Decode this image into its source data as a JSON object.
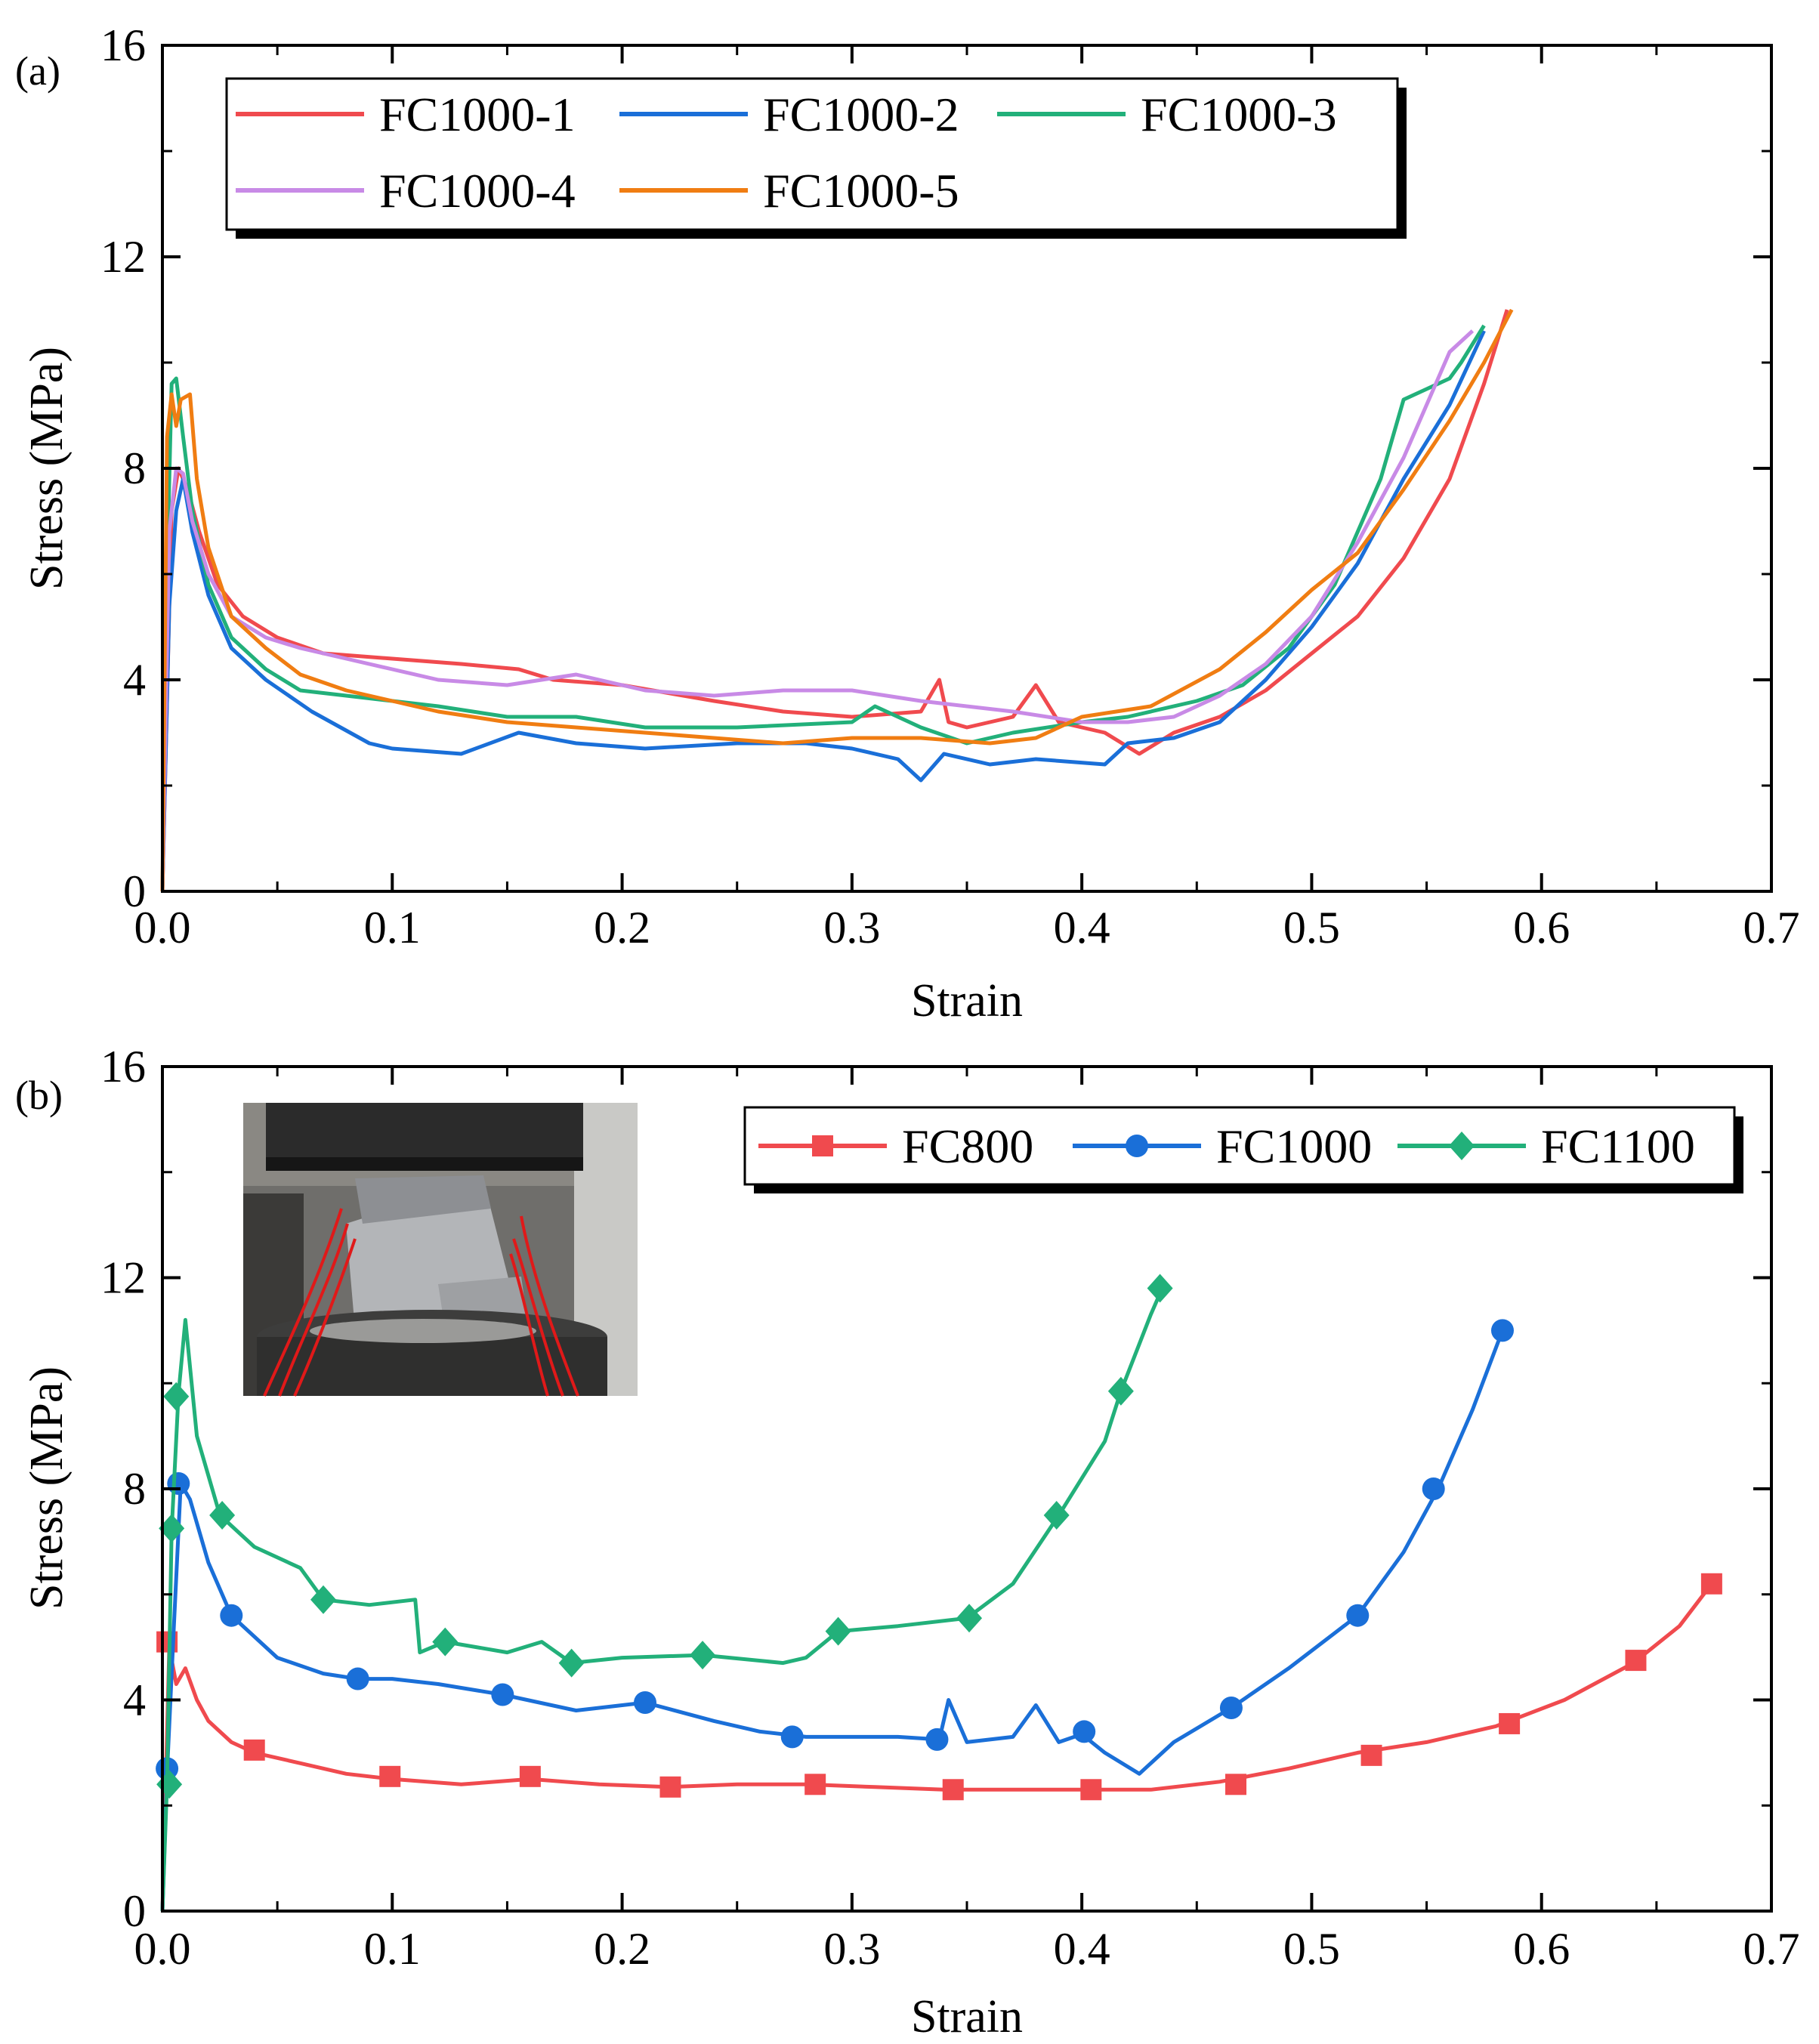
{
  "chart_data": [
    {
      "panel_label": "(a)",
      "type": "line",
      "xlabel": "Strain",
      "ylabel": "Stress (MPa)",
      "xlim": [
        0.0,
        0.7
      ],
      "ylim": [
        0,
        16
      ],
      "xticks": [
        "0.0",
        "0.1",
        "0.2",
        "0.3",
        "0.4",
        "0.5",
        "0.6",
        "0.7"
      ],
      "yticks": [
        "0",
        "4",
        "8",
        "12",
        "16"
      ],
      "legend_position": "top-left",
      "series": [
        {
          "name": "FC1000-1",
          "color": "#f04a4e",
          "x": [
            0,
            0.004,
            0.007,
            0.011,
            0.016,
            0.024,
            0.035,
            0.05,
            0.07,
            0.1,
            0.13,
            0.155,
            0.17,
            0.2,
            0.24,
            0.27,
            0.3,
            0.33,
            0.338,
            0.342,
            0.35,
            0.37,
            0.38,
            0.39,
            0.41,
            0.425,
            0.44,
            0.46,
            0.48,
            0.5,
            0.52,
            0.54,
            0.56,
            0.575,
            0.585
          ],
          "y": [
            0,
            7.2,
            8.0,
            7.6,
            6.8,
            5.8,
            5.2,
            4.8,
            4.5,
            4.4,
            4.3,
            4.2,
            4.0,
            3.9,
            3.6,
            3.4,
            3.3,
            3.4,
            4.0,
            3.2,
            3.1,
            3.3,
            3.9,
            3.2,
            3.0,
            2.6,
            3.0,
            3.3,
            3.8,
            4.5,
            5.2,
            6.3,
            7.8,
            9.6,
            11.0
          ]
        },
        {
          "name": "FC1000-2",
          "color": "#1a6fd8",
          "x": [
            0,
            0.003,
            0.006,
            0.009,
            0.013,
            0.02,
            0.03,
            0.045,
            0.065,
            0.09,
            0.1,
            0.13,
            0.155,
            0.18,
            0.21,
            0.25,
            0.28,
            0.3,
            0.32,
            0.33,
            0.34,
            0.36,
            0.38,
            0.41,
            0.42,
            0.44,
            0.46,
            0.48,
            0.5,
            0.52,
            0.54,
            0.56,
            0.575
          ],
          "y": [
            0,
            5.4,
            7.2,
            7.8,
            6.8,
            5.6,
            4.6,
            4.0,
            3.4,
            2.8,
            2.7,
            2.6,
            3.0,
            2.8,
            2.7,
            2.8,
            2.8,
            2.7,
            2.5,
            2.1,
            2.6,
            2.4,
            2.5,
            2.4,
            2.8,
            2.9,
            3.2,
            4.0,
            5.0,
            6.2,
            7.8,
            9.2,
            10.6
          ]
        },
        {
          "name": "FC1000-3",
          "color": "#22b07a",
          "x": [
            0,
            0.002,
            0.004,
            0.006,
            0.009,
            0.013,
            0.02,
            0.03,
            0.045,
            0.06,
            0.08,
            0.1,
            0.12,
            0.15,
            0.18,
            0.21,
            0.25,
            0.3,
            0.31,
            0.33,
            0.35,
            0.37,
            0.4,
            0.42,
            0.45,
            0.47,
            0.49,
            0.51,
            0.53,
            0.54,
            0.55,
            0.56,
            0.565,
            0.575
          ],
          "y": [
            0,
            6.0,
            9.6,
            9.7,
            8.6,
            7.2,
            5.8,
            4.8,
            4.2,
            3.8,
            3.7,
            3.6,
            3.5,
            3.3,
            3.3,
            3.1,
            3.1,
            3.2,
            3.5,
            3.1,
            2.8,
            3.0,
            3.2,
            3.3,
            3.6,
            3.9,
            4.6,
            5.8,
            7.8,
            9.3,
            9.5,
            9.7,
            10.0,
            10.7
          ]
        },
        {
          "name": "FC1000-4",
          "color": "#c88ae6",
          "x": [
            0,
            0.003,
            0.006,
            0.009,
            0.013,
            0.02,
            0.03,
            0.045,
            0.06,
            0.08,
            0.1,
            0.12,
            0.15,
            0.18,
            0.21,
            0.24,
            0.27,
            0.3,
            0.33,
            0.37,
            0.4,
            0.42,
            0.44,
            0.46,
            0.48,
            0.5,
            0.52,
            0.54,
            0.56,
            0.57
          ],
          "y": [
            0,
            6.8,
            8.0,
            7.9,
            7.0,
            6.0,
            5.2,
            4.8,
            4.6,
            4.4,
            4.2,
            4.0,
            3.9,
            4.1,
            3.8,
            3.7,
            3.8,
            3.8,
            3.6,
            3.4,
            3.2,
            3.2,
            3.3,
            3.7,
            4.3,
            5.2,
            6.6,
            8.2,
            10.2,
            10.6
          ]
        },
        {
          "name": "FC1000-5",
          "color": "#f07d12",
          "x": [
            0,
            0.002,
            0.004,
            0.006,
            0.008,
            0.012,
            0.015,
            0.02,
            0.03,
            0.045,
            0.06,
            0.08,
            0.1,
            0.12,
            0.15,
            0.18,
            0.21,
            0.24,
            0.27,
            0.3,
            0.33,
            0.36,
            0.38,
            0.4,
            0.43,
            0.46,
            0.48,
            0.5,
            0.52,
            0.54,
            0.56,
            0.575,
            0.587
          ],
          "y": [
            0,
            8.6,
            9.4,
            8.8,
            9.3,
            9.4,
            7.8,
            6.5,
            5.2,
            4.6,
            4.1,
            3.8,
            3.6,
            3.4,
            3.2,
            3.1,
            3.0,
            2.9,
            2.8,
            2.9,
            2.9,
            2.8,
            2.9,
            3.3,
            3.5,
            4.2,
            4.9,
            5.7,
            6.4,
            7.6,
            8.9,
            10.0,
            11.0
          ]
        }
      ]
    },
    {
      "panel_label": "(b)",
      "type": "line",
      "xlabel": "Strain",
      "ylabel": "Stress (MPa)",
      "xlim": [
        0.0,
        0.7
      ],
      "ylim": [
        0,
        16
      ],
      "xticks": [
        "0.0",
        "0.1",
        "0.2",
        "0.3",
        "0.4",
        "0.5",
        "0.6",
        "0.7"
      ],
      "yticks": [
        "0",
        "4",
        "8",
        "12",
        "16"
      ],
      "legend_position": "top-right",
      "inset_photo": "compression-test-photo",
      "series": [
        {
          "name": "FC800",
          "color": "#f04a4e",
          "marker": "square",
          "x": [
            0,
            0.003,
            0.006,
            0.01,
            0.015,
            0.02,
            0.03,
            0.04,
            0.06,
            0.08,
            0.1,
            0.13,
            0.16,
            0.19,
            0.22,
            0.25,
            0.28,
            0.31,
            0.34,
            0.37,
            0.4,
            0.43,
            0.46,
            0.49,
            0.52,
            0.55,
            0.58,
            0.61,
            0.64,
            0.66,
            0.674
          ],
          "y": [
            0,
            5.0,
            4.3,
            4.6,
            4.0,
            3.6,
            3.2,
            3.0,
            2.8,
            2.6,
            2.5,
            2.4,
            2.5,
            2.4,
            2.35,
            2.4,
            2.4,
            2.35,
            2.3,
            2.3,
            2.3,
            2.3,
            2.45,
            2.7,
            3.0,
            3.2,
            3.5,
            4.0,
            4.7,
            5.4,
            6.2
          ],
          "marker_x": [
            0.002,
            0.04,
            0.099,
            0.16,
            0.221,
            0.284,
            0.344,
            0.404,
            0.467,
            0.526,
            0.586,
            0.641,
            0.674
          ],
          "marker_y": [
            5.1,
            3.05,
            2.55,
            2.55,
            2.35,
            2.4,
            2.3,
            2.3,
            2.4,
            2.95,
            3.55,
            4.75,
            6.2
          ]
        },
        {
          "name": "FC1000",
          "color": "#1a6fd8",
          "marker": "circle",
          "x": [
            0,
            0.002,
            0.005,
            0.008,
            0.012,
            0.02,
            0.03,
            0.05,
            0.07,
            0.085,
            0.1,
            0.12,
            0.148,
            0.18,
            0.21,
            0.24,
            0.26,
            0.28,
            0.3,
            0.32,
            0.338,
            0.342,
            0.35,
            0.37,
            0.38,
            0.39,
            0.4,
            0.41,
            0.425,
            0.44,
            0.465,
            0.49,
            0.52,
            0.54,
            0.555,
            0.57,
            0.583
          ],
          "y": [
            0,
            2.6,
            5.4,
            8.1,
            7.8,
            6.6,
            5.6,
            4.8,
            4.5,
            4.4,
            4.4,
            4.3,
            4.1,
            3.8,
            3.95,
            3.6,
            3.4,
            3.3,
            3.3,
            3.3,
            3.25,
            4.0,
            3.2,
            3.3,
            3.9,
            3.2,
            3.35,
            3.0,
            2.6,
            3.2,
            3.85,
            4.6,
            5.6,
            6.8,
            8.0,
            9.5,
            11.0
          ]
        },
        {
          "name": "FC1100",
          "color": "#22b07a",
          "marker": "diamond",
          "x": [
            0,
            0.002,
            0.004,
            0.007,
            0.01,
            0.015,
            0.025,
            0.04,
            0.06,
            0.07,
            0.09,
            0.11,
            0.112,
            0.123,
            0.15,
            0.165,
            0.178,
            0.2,
            0.235,
            0.27,
            0.28,
            0.294,
            0.32,
            0.35,
            0.37,
            0.39,
            0.41,
            0.417,
            0.43,
            0.435
          ],
          "y": [
            0,
            2.4,
            7.2,
            9.8,
            11.2,
            9.0,
            7.5,
            6.9,
            6.5,
            5.9,
            5.8,
            5.9,
            4.9,
            5.1,
            4.9,
            5.1,
            4.7,
            4.8,
            4.85,
            4.7,
            4.8,
            5.3,
            5.4,
            5.55,
            6.2,
            7.5,
            8.9,
            9.85,
            11.3,
            11.8
          ],
          "marker_x": [
            0.003,
            0.006,
            0.004,
            0.026,
            0.07,
            0.123,
            0.178,
            0.235,
            0.294,
            0.351,
            0.389,
            0.417,
            0.434
          ],
          "marker_y": [
            2.4,
            9.75,
            7.25,
            7.5,
            5.9,
            5.1,
            4.7,
            4.85,
            5.3,
            5.55,
            7.5,
            9.85,
            11.8
          ]
        }
      ],
      "fc1000_marker_x": [
        0.002,
        0.007,
        0.03,
        0.085,
        0.148,
        0.21,
        0.274,
        0.337,
        0.401,
        0.465,
        0.52,
        0.553,
        0.583
      ],
      "fc1000_marker_y": [
        2.7,
        8.1,
        5.6,
        4.4,
        4.1,
        3.95,
        3.3,
        3.25,
        3.4,
        3.85,
        5.6,
        8.0,
        11.0
      ]
    }
  ]
}
